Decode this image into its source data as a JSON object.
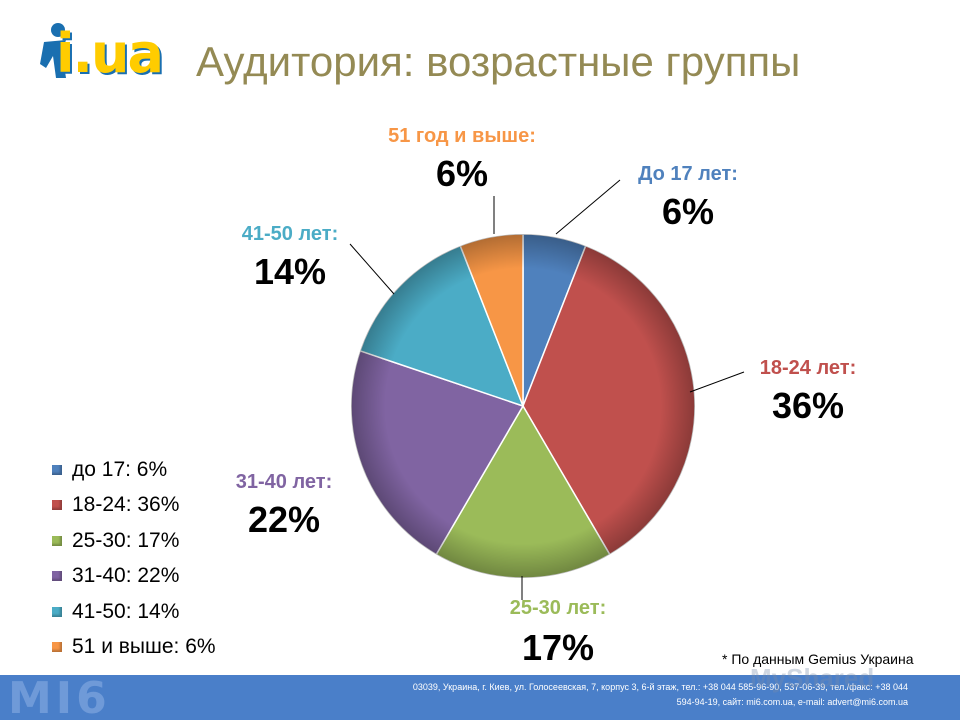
{
  "header": {
    "logo_text": "i.ua",
    "title": "Аудитория: возрастные группы"
  },
  "colors": [
    "#4f81bd",
    "#c0504d",
    "#9bbb59",
    "#8064a2",
    "#4bacc6",
    "#f79646"
  ],
  "chart_data": {
    "type": "pie",
    "title": "",
    "categories": [
      "До 17 лет:",
      "18-24 лет:",
      "25-30 лет:",
      "31-40 лет:",
      "41-50 лет:",
      "51 год и выше:"
    ],
    "values": [
      6,
      36,
      17,
      22,
      14,
      6
    ],
    "value_labels": [
      "6%",
      "36%",
      "17%",
      "22%",
      "14%",
      "6%"
    ],
    "legend": {
      "position": "left",
      "entries": [
        "до 17: 6%",
        "18-24: 36%",
        "25-30: 17%",
        "31-40: 22%",
        "41-50: 14%",
        "51 и выше: 6%"
      ]
    }
  },
  "footnote": "* По данным Gemius Украина",
  "footer": {
    "logo_text": "MI6",
    "line1": "03039, Украина, г. Киев, ул. Голосеевская, 7, корпус 3, 6-й этаж, тел.: +38 044 585-96-90, 537-06-39, тел./факс: +38 044",
    "line2": "594-94-19, сайт: mi6.com.ua, e-mail: advert@mi6.com.ua"
  },
  "watermark": "MyShared"
}
